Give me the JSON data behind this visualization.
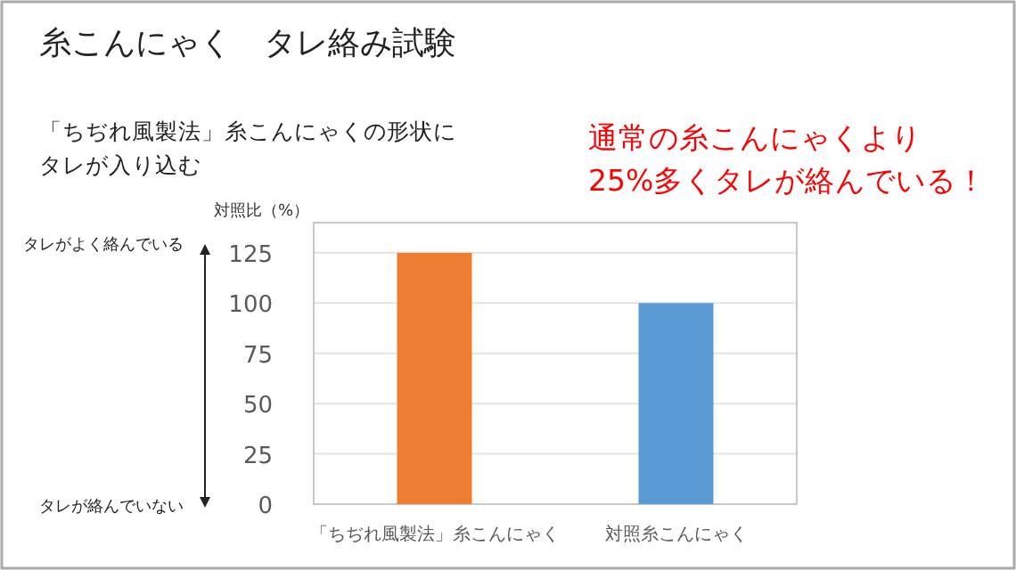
{
  "chart_data": {
    "type": "bar",
    "title": "糸こんにゃく　タレ絡み試験",
    "subtitle": "「ちぢれ風製法」糸こんにゃくの形状にタレが入り込む",
    "ylabel": "対照比（%）",
    "categories": [
      "「ちぢれ風製法」糸こんにゃく",
      "対照糸こんにゃく"
    ],
    "values": [
      125,
      100
    ],
    "colors": [
      "#ed7d31",
      "#5b9bd5"
    ],
    "ylim": [
      0,
      140
    ],
    "yticks": [
      0,
      25,
      50,
      75,
      100,
      125
    ],
    "grid": "y",
    "annotations": [
      "タレがよく絡んでいる",
      "タレが絡んでいない",
      "通常の糸こんにゃくより\n25%多くタレが絡んでいる！"
    ]
  }
}
